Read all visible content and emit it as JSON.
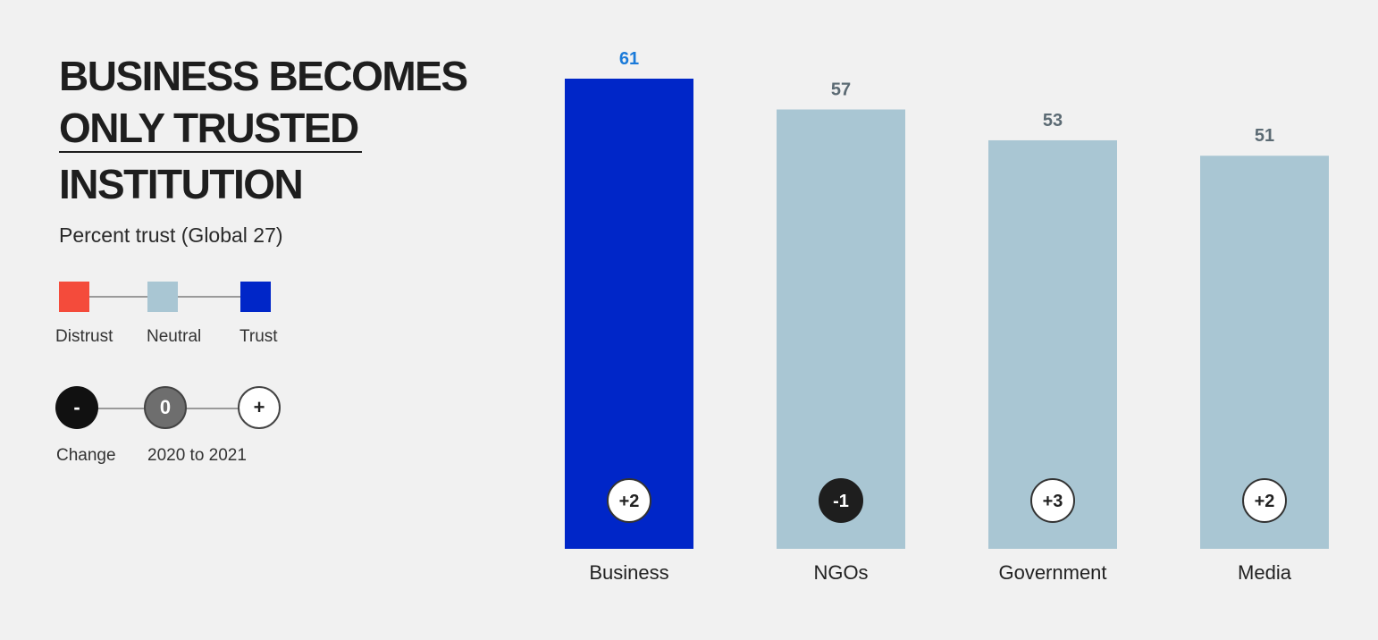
{
  "title_lines": [
    "BUSINESS BECOMES",
    "ONLY TRUSTED",
    "INSTITUTION"
  ],
  "subtitle": "Percent trust (Global 27)",
  "legend_colors": {
    "items": [
      {
        "label": "Distrust",
        "color": "#f44b3b"
      },
      {
        "label": "Neutral",
        "color": "#a9c6d3"
      },
      {
        "label": "Trust",
        "color": "#0026c8"
      }
    ]
  },
  "legend_change": {
    "symbols": [
      "-",
      "0",
      "+"
    ],
    "label_left": "Change",
    "label_right": "2020 to 2021"
  },
  "colors": {
    "trust": "#0026c8",
    "neutral": "#a9c6d3",
    "distrust": "#f44b3b",
    "trust_label": "#1a7ad9",
    "neutral_label": "#5b6a73",
    "negative_change": "#1e1e1e",
    "zero_change": "#6e6e6e"
  },
  "chart_data": {
    "type": "bar",
    "categories": [
      "Business",
      "NGOs",
      "Government",
      "Media"
    ],
    "values": [
      61,
      57,
      53,
      51
    ],
    "changes": [
      "+2",
      "-1",
      "+3",
      "+2"
    ],
    "bar_levels": [
      "Trust",
      "Neutral",
      "Neutral",
      "Neutral"
    ],
    "title": "BUSINESS BECOMES ONLY TRUSTED INSTITUTION",
    "ylabel": "Percent trust (Global 27)",
    "ylim": [
      0,
      61
    ]
  }
}
